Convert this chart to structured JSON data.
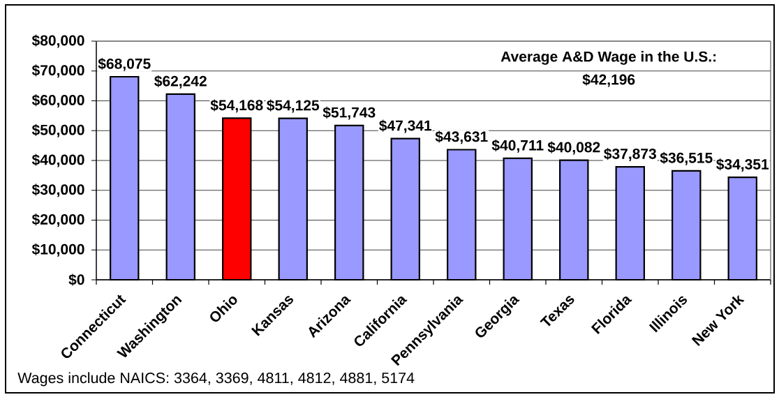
{
  "chart_data": {
    "type": "bar",
    "categories": [
      "Connecticut",
      "Washington",
      "Ohio",
      "Kansas",
      "Arizona",
      "California",
      "Pennsylvania",
      "Georgia",
      "Texas",
      "Florida",
      "Illinois",
      "New York"
    ],
    "values": [
      68075,
      62242,
      54168,
      54125,
      51743,
      47341,
      43631,
      40711,
      40082,
      37873,
      36515,
      34351
    ],
    "colors": [
      "#9999ff",
      "#9999ff",
      "#ff0000",
      "#9999ff",
      "#9999ff",
      "#9999ff",
      "#9999ff",
      "#9999ff",
      "#9999ff",
      "#9999ff",
      "#9999ff",
      "#9999ff"
    ],
    "value_labels": [
      "$68,075",
      "$62,242",
      "$54,168",
      "$54,125",
      "$51,743",
      "$47,341",
      "$43,631",
      "$40,711",
      "$40,082",
      "$37,873",
      "$36,515",
      "$34,351"
    ],
    "ylim": [
      0,
      80000
    ],
    "yticks": [
      {
        "value": 0,
        "label": "$0"
      },
      {
        "value": 10000,
        "label": "$10,000"
      },
      {
        "value": 20000,
        "label": "$20,000"
      },
      {
        "value": 30000,
        "label": "$30,000"
      },
      {
        "value": 40000,
        "label": "$40,000"
      },
      {
        "value": 50000,
        "label": "$50,000"
      },
      {
        "value": 60000,
        "label": "$60,000"
      },
      {
        "value": 70000,
        "label": "$70,000"
      },
      {
        "value": 80000,
        "label": "$80,000"
      }
    ],
    "grid": "y",
    "annotations": [
      "Average A&D Wage in the U.S.:",
      "$42,196",
      "Wages include NAICS: 3364, 3369, 4811, 4812, 4881, 5174"
    ]
  }
}
